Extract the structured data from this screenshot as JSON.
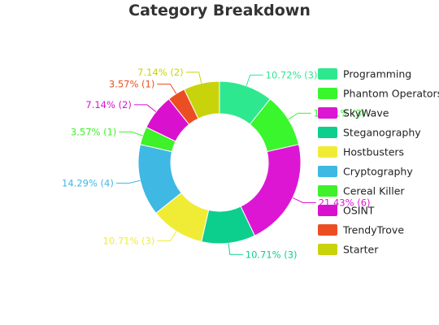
{
  "chart_data": {
    "type": "pie",
    "title": "Category Breakdown",
    "legend_position": "right",
    "slices": [
      {
        "name": "Programming",
        "count": 3,
        "percent": 10.72,
        "label": "10.72% (3)",
        "color": "#2ee890"
      },
      {
        "name": "Phantom Operators",
        "count": 3,
        "percent": 10.71,
        "label": "10.71% (3)",
        "color": "#39f62d"
      },
      {
        "name": "SkyWave",
        "count": 6,
        "percent": 21.43,
        "label": "21.43% (6)",
        "color": "#dd16d4"
      },
      {
        "name": "Steganography",
        "count": 3,
        "percent": 10.71,
        "label": "10.71% (3)",
        "color": "#0ccf8d"
      },
      {
        "name": "Hostbusters",
        "count": 3,
        "percent": 10.71,
        "label": "10.71% (3)",
        "color": "#f0ec35"
      },
      {
        "name": "Cryptography",
        "count": 4,
        "percent": 14.29,
        "label": "14.29% (4)",
        "color": "#3fb8e4"
      },
      {
        "name": "Cereal Killer",
        "count": 1,
        "percent": 3.57,
        "label": "3.57% (1)",
        "color": "#3ef128"
      },
      {
        "name": "OSINT",
        "count": 2,
        "percent": 7.14,
        "label": "7.14% (2)",
        "color": "#d911cf"
      },
      {
        "name": "TrendyTrove",
        "count": 1,
        "percent": 3.57,
        "label": "3.57% (1)",
        "color": "#ec4e23"
      },
      {
        "name": "Starter",
        "count": 2,
        "percent": 7.14,
        "label": "7.14% (2)",
        "color": "#c9d30c"
      }
    ]
  }
}
